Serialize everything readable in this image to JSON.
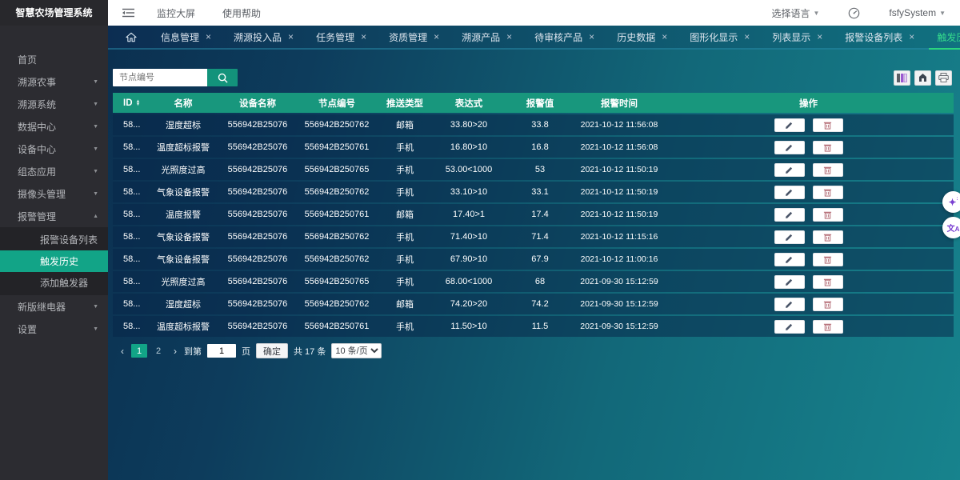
{
  "app": {
    "title": "智慧农场管理系统"
  },
  "colors": {
    "accent_teal": "#12a487",
    "header_teal": "#18977d",
    "active_tab_green": "#35dc8c",
    "row_bg": "#0b3355",
    "sidebar_bg": "#2c2c31",
    "tabbar_left": "#0c2d52",
    "tabbar_right": "#117180"
  },
  "icons": {
    "collapse": "collapse-menu",
    "home": "home",
    "gauge": "dashboard-gauge",
    "search": "magnifier",
    "columns": "column-picker",
    "export": "export",
    "print": "printer",
    "sort": "sort-arrows",
    "edit": "pencil",
    "delete": "trash",
    "sparkle": "ai-sparkle",
    "translate": "translate"
  },
  "topbar": {
    "monitor_label": "监控大屏",
    "help_label": "使用帮助",
    "language_label": "选择语言",
    "username": "fsfySystem"
  },
  "tabs": [
    {
      "label": "信息管理"
    },
    {
      "label": "溯源投入品"
    },
    {
      "label": "任务管理"
    },
    {
      "label": "资质管理"
    },
    {
      "label": "溯源产品"
    },
    {
      "label": "待审核产品"
    },
    {
      "label": "历史数据"
    },
    {
      "label": "图形化显示"
    },
    {
      "label": "列表显示"
    },
    {
      "label": "报警设备列表"
    },
    {
      "label": "触发历史",
      "active": true
    }
  ],
  "sidebar": {
    "items": [
      {
        "label": "首页",
        "arrow": ""
      },
      {
        "label": "溯源农事",
        "arrow": "down"
      },
      {
        "label": "溯源系统",
        "arrow": "down"
      },
      {
        "label": "数据中心",
        "arrow": "down"
      },
      {
        "label": "设备中心",
        "arrow": "down"
      },
      {
        "label": "组态应用",
        "arrow": "down"
      },
      {
        "label": "摄像头管理",
        "arrow": "down"
      },
      {
        "label": "报警管理",
        "arrow": "up",
        "children": [
          {
            "label": "报警设备列表"
          },
          {
            "label": "触发历史",
            "active": true
          },
          {
            "label": "添加触发器"
          }
        ]
      },
      {
        "label": "新版继电器",
        "arrow": "down"
      },
      {
        "label": "设置",
        "arrow": "down"
      }
    ]
  },
  "search": {
    "placeholder": "节点编号"
  },
  "table": {
    "headers": [
      "ID",
      "名称",
      "设备名称",
      "节点编号",
      "推送类型",
      "表达式",
      "报警值",
      "报警时间",
      "操作"
    ],
    "rows": [
      {
        "id": "58...",
        "name": "湿度超标",
        "device": "556942B25076",
        "node": "556942B250762",
        "push": "邮箱",
        "expr": "33.80>20",
        "value": "33.8",
        "time": "2021-10-12 11:56:08"
      },
      {
        "id": "58...",
        "name": "温度超标报警",
        "device": "556942B25076",
        "node": "556942B250761",
        "push": "手机",
        "expr": "16.80>10",
        "value": "16.8",
        "time": "2021-10-12 11:56:08"
      },
      {
        "id": "58...",
        "name": "光照度过高",
        "device": "556942B25076",
        "node": "556942B250765",
        "push": "手机",
        "expr": "53.00<1000",
        "value": "53",
        "time": "2021-10-12 11:50:19"
      },
      {
        "id": "58...",
        "name": "气象设备报警",
        "device": "556942B25076",
        "node": "556942B250762",
        "push": "手机",
        "expr": "33.10>10",
        "value": "33.1",
        "time": "2021-10-12 11:50:19"
      },
      {
        "id": "58...",
        "name": "温度报警",
        "device": "556942B25076",
        "node": "556942B250761",
        "push": "邮箱",
        "expr": "17.40>1",
        "value": "17.4",
        "time": "2021-10-12 11:50:19"
      },
      {
        "id": "58...",
        "name": "气象设备报警",
        "device": "556942B25076",
        "node": "556942B250762",
        "push": "手机",
        "expr": "71.40>10",
        "value": "71.4",
        "time": "2021-10-12 11:15:16"
      },
      {
        "id": "58...",
        "name": "气象设备报警",
        "device": "556942B25076",
        "node": "556942B250762",
        "push": "手机",
        "expr": "67.90>10",
        "value": "67.9",
        "time": "2021-10-12 11:00:16"
      },
      {
        "id": "58...",
        "name": "光照度过高",
        "device": "556942B25076",
        "node": "556942B250765",
        "push": "手机",
        "expr": "68.00<1000",
        "value": "68",
        "time": "2021-09-30 15:12:59"
      },
      {
        "id": "58...",
        "name": "湿度超标",
        "device": "556942B25076",
        "node": "556942B250762",
        "push": "邮箱",
        "expr": "74.20>20",
        "value": "74.2",
        "time": "2021-09-30 15:12:59"
      },
      {
        "id": "58...",
        "name": "温度超标报警",
        "device": "556942B25076",
        "node": "556942B250761",
        "push": "手机",
        "expr": "11.50>10",
        "value": "11.5",
        "time": "2021-09-30 15:12:59"
      }
    ]
  },
  "pagination": {
    "pages": [
      {
        "label": "1",
        "active": true
      },
      {
        "label": "2"
      }
    ],
    "prev": "‹",
    "next": "›",
    "goto_prefix": "到第",
    "goto_value": "1",
    "goto_suffix": "页",
    "confirm_label": "确定",
    "total_label": "共 17 条",
    "page_size_label": "10 条/页"
  }
}
